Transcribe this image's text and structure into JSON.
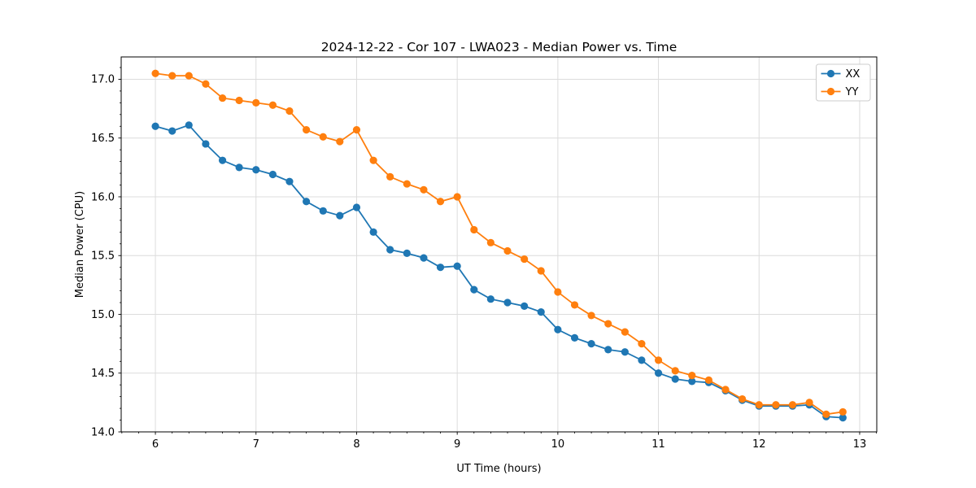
{
  "chart_data": {
    "type": "line",
    "title": "2024-12-22 - Cor 107 - LWA023 - Median Power vs. Time",
    "xlabel": "UT Time (hours)",
    "ylabel": "Median Power (CPU)",
    "xlim": [
      5.66,
      13.17
    ],
    "ylim": [
      14.0,
      17.19
    ],
    "grid": true,
    "legend_position": "upper right",
    "x_tick_values": [
      6,
      7,
      8,
      9,
      10,
      11,
      12,
      13
    ],
    "x_tick_labels": [
      "6",
      "7",
      "8",
      "9",
      "10",
      "11",
      "12",
      "13"
    ],
    "y_tick_values": [
      14.0,
      14.5,
      15.0,
      15.5,
      16.0,
      16.5,
      17.0
    ],
    "y_tick_labels": [
      "14.0",
      "14.5",
      "15.0",
      "15.5",
      "16.0",
      "16.5",
      "17.0"
    ],
    "x_minor_ticks_per_hour": 6,
    "y_minor_step": 0.1,
    "x": [
      6.0,
      6.167,
      6.333,
      6.5,
      6.667,
      6.833,
      7.0,
      7.167,
      7.333,
      7.5,
      7.667,
      7.833,
      8.0,
      8.167,
      8.333,
      8.5,
      8.667,
      8.833,
      9.0,
      9.167,
      9.333,
      9.5,
      9.667,
      9.833,
      10.0,
      10.167,
      10.333,
      10.5,
      10.667,
      10.833,
      11.0,
      11.167,
      11.333,
      11.5,
      11.667,
      11.833,
      12.0,
      12.167,
      12.333,
      12.5,
      12.667,
      12.833
    ],
    "series": [
      {
        "name": "XX",
        "color": "#1f77b4",
        "values": [
          16.6,
          16.56,
          16.61,
          16.45,
          16.31,
          16.25,
          16.23,
          16.19,
          16.13,
          15.96,
          15.88,
          15.84,
          15.91,
          15.7,
          15.55,
          15.52,
          15.48,
          15.4,
          15.41,
          15.21,
          15.13,
          15.1,
          15.07,
          15.02,
          14.87,
          14.8,
          14.75,
          14.7,
          14.68,
          14.61,
          14.5,
          14.45,
          14.43,
          14.42,
          14.35,
          14.27,
          14.22,
          14.22,
          14.22,
          14.23,
          14.13,
          14.12
        ]
      },
      {
        "name": "YY",
        "color": "#ff7f0e",
        "values": [
          17.05,
          17.03,
          17.03,
          16.96,
          16.84,
          16.82,
          16.8,
          16.78,
          16.73,
          16.57,
          16.51,
          16.47,
          16.57,
          16.31,
          16.17,
          16.11,
          16.06,
          15.96,
          16.0,
          15.72,
          15.61,
          15.54,
          15.47,
          15.37,
          15.19,
          15.08,
          14.99,
          14.92,
          14.85,
          14.75,
          14.61,
          14.52,
          14.48,
          14.44,
          14.36,
          14.28,
          14.23,
          14.23,
          14.23,
          14.25,
          14.15,
          14.17
        ]
      }
    ]
  },
  "style_colors": {
    "grid": "#dcdcdc",
    "spine": "#000000",
    "legend_edge": "#cccccc",
    "background": "#ffffff"
  }
}
